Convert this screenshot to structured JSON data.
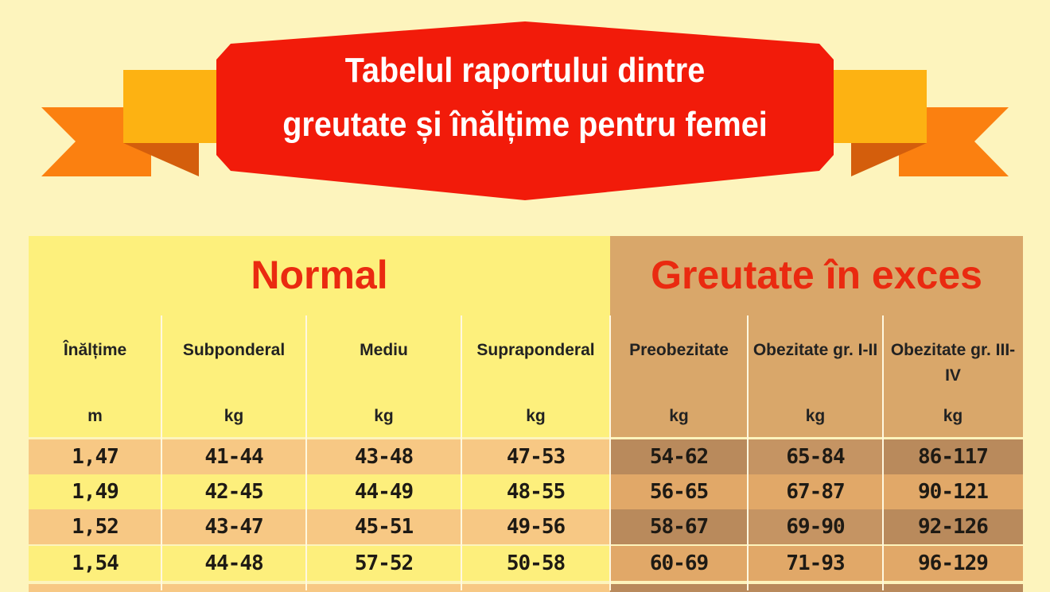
{
  "title": {
    "line1": "Tabelul raportului dintre",
    "line2": "greutate și înălțime pentru femei"
  },
  "groups": {
    "normal": "Normal",
    "excess": "Greutate în exces"
  },
  "columns": [
    {
      "label": "Înălțime",
      "unit": "m"
    },
    {
      "label": "Subponderal",
      "unit": "kg"
    },
    {
      "label": "Mediu",
      "unit": "kg"
    },
    {
      "label": "Supraponderal",
      "unit": "kg"
    },
    {
      "label": "Preobezitate",
      "unit": "kg"
    },
    {
      "label": "Obezitate gr. I-II",
      "unit": "kg"
    },
    {
      "label": "Obezitate gr. III-IV",
      "unit": "kg"
    }
  ],
  "rows": [
    [
      "1,47",
      "41-44",
      "43-48",
      "47-53",
      "54-62",
      "65-84",
      "86-117"
    ],
    [
      "1,49",
      "42-45",
      "44-49",
      "48-55",
      "56-65",
      "67-87",
      "90-121"
    ],
    [
      "1,52",
      "43-47",
      "45-51",
      "49-56",
      "58-67",
      "69-90",
      "92-126"
    ],
    [
      "1,54",
      "44-48",
      "57-52",
      "50-58",
      "60-69",
      "71-93",
      "96-129"
    ]
  ],
  "colors": {
    "background": "#fdf4bd",
    "banner": "#f21b0a",
    "group_title": "#ea2a10",
    "normal_header": "#fdf07c",
    "excess_header": "#d9a76a"
  }
}
